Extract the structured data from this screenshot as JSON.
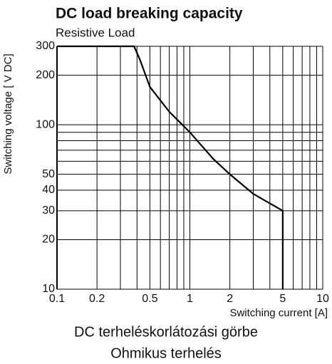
{
  "chart_data": {
    "type": "line",
    "title": "DC load breaking capacity",
    "subtitle": "Resistive Load",
    "y_label": "Switching voltage [ V DC]",
    "x_label": "Switching current [A]",
    "captions": [
      "DC terheléskorlátozási görbe",
      "Ohmikus terhelés"
    ],
    "log_x": true,
    "log_y": true,
    "grid": true,
    "xlim": [
      0.1,
      10
    ],
    "ylim": [
      10,
      300
    ],
    "xticks": [
      0.1,
      0.2,
      0.5,
      1,
      2,
      5,
      10
    ],
    "yticks": [
      10,
      20,
      30,
      40,
      50,
      100,
      200,
      300
    ],
    "xminor": [
      0.3,
      0.4,
      0.6,
      0.7,
      0.8,
      0.9,
      3,
      4,
      6,
      7,
      8,
      9
    ],
    "yminor": [
      60,
      70,
      80,
      90
    ],
    "series": [
      {
        "color": "#000000",
        "x": [
          0.1,
          0.38,
          0.42,
          0.5,
          0.7,
          1,
          1.5,
          2,
          3,
          5,
          5
        ],
        "values": [
          300,
          300,
          250,
          170,
          120,
          90,
          62,
          50,
          38,
          30,
          10
        ]
      }
    ]
  }
}
